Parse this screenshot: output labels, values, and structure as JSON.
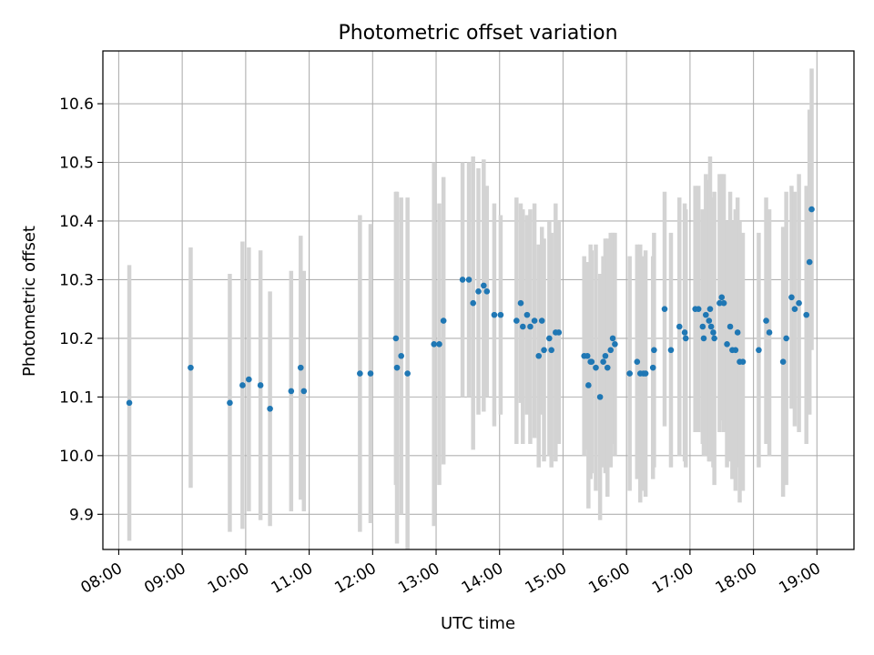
{
  "chart_data": {
    "type": "scatter",
    "title": "Photometric offset variation",
    "xlabel": "UTC time",
    "ylabel": "Photometric offset",
    "xlim": [
      "07:45",
      "19:35"
    ],
    "ylim": [
      9.84,
      10.69
    ],
    "grid": true,
    "x_ticks": [
      "08:00",
      "09:00",
      "10:00",
      "11:00",
      "12:00",
      "13:00",
      "14:00",
      "15:00",
      "16:00",
      "17:00",
      "18:00",
      "19:00"
    ],
    "y_ticks": [
      9.9,
      10.0,
      10.1,
      10.2,
      10.3,
      10.4,
      10.5,
      10.6
    ],
    "colors": {
      "points": "#1f77b4",
      "errorbars": "#d3d3d3",
      "grid": "#b0b0b0"
    },
    "series": [
      {
        "x": [
          "08:10",
          "09:08",
          "09:45",
          "09:57",
          "10:03",
          "10:14",
          "10:23",
          "10:43",
          "10:52",
          "10:55",
          "11:48",
          "11:58",
          "12:22",
          "12:23",
          "12:27",
          "12:33",
          "12:58",
          "13:03",
          "13:07",
          "13:25",
          "13:31",
          "13:35",
          "13:40",
          "13:45",
          "13:48",
          "13:55",
          "14:01",
          "14:16",
          "14:20",
          "14:22",
          "14:26",
          "14:29",
          "14:33",
          "14:37",
          "14:40",
          "14:42",
          "14:47",
          "14:49",
          "14:53",
          "14:56",
          "15:20",
          "15:23",
          "15:24",
          "15:26",
          "15:27",
          "15:31",
          "15:35",
          "15:38",
          "15:40",
          "15:42",
          "15:45",
          "15:47",
          "15:49",
          "16:03",
          "16:10",
          "16:13",
          "16:16",
          "16:18",
          "16:25",
          "16:26",
          "16:36",
          "16:42",
          "16:50",
          "16:55",
          "16:56",
          "17:05",
          "17:08",
          "17:12",
          "17:13",
          "17:15",
          "17:18",
          "17:19",
          "17:20",
          "17:22",
          "17:23",
          "17:28",
          "17:30",
          "17:32",
          "17:35",
          "17:38",
          "17:40",
          "17:43",
          "17:45",
          "17:47",
          "17:50",
          "18:05",
          "18:12",
          "18:15",
          "18:28",
          "18:31",
          "18:36",
          "18:39",
          "18:43",
          "18:50",
          "18:53",
          "18:55"
        ],
        "y": [
          10.09,
          10.15,
          10.09,
          10.12,
          10.13,
          10.12,
          10.08,
          10.11,
          10.15,
          10.11,
          10.14,
          10.14,
          10.2,
          10.15,
          10.17,
          10.14,
          10.19,
          10.19,
          10.23,
          10.3,
          10.3,
          10.26,
          10.28,
          10.29,
          10.28,
          10.24,
          10.24,
          10.23,
          10.26,
          10.22,
          10.24,
          10.22,
          10.23,
          10.17,
          10.23,
          10.18,
          10.2,
          10.18,
          10.21,
          10.21,
          10.17,
          10.17,
          10.12,
          10.16,
          10.16,
          10.15,
          10.1,
          10.16,
          10.17,
          10.15,
          10.18,
          10.2,
          10.19,
          10.14,
          10.16,
          10.14,
          10.14,
          10.14,
          10.15,
          10.18,
          10.25,
          10.18,
          10.22,
          10.21,
          10.2,
          10.25,
          10.25,
          10.22,
          10.2,
          10.24,
          10.23,
          10.25,
          10.22,
          10.21,
          10.2,
          10.26,
          10.27,
          10.26,
          10.19,
          10.22,
          10.18,
          10.18,
          10.21,
          10.16,
          10.16,
          10.18,
          10.23,
          10.21,
          10.16,
          10.2,
          10.27,
          10.25,
          10.26,
          10.24,
          10.33,
          10.42
        ],
        "yerr": [
          0.235,
          0.205,
          0.22,
          0.245,
          0.225,
          0.23,
          0.2,
          0.205,
          0.225,
          0.205,
          0.27,
          0.255,
          0.25,
          0.3,
          0.27,
          0.3,
          0.31,
          0.24,
          0.245,
          0.2,
          0.2,
          0.25,
          0.21,
          0.215,
          0.18,
          0.19,
          0.17,
          0.21,
          0.17,
          0.2,
          0.17,
          0.2,
          0.2,
          0.19,
          0.16,
          0.19,
          0.2,
          0.2,
          0.22,
          0.19,
          0.17,
          0.16,
          0.21,
          0.2,
          0.19,
          0.21,
          0.21,
          0.18,
          0.2,
          0.22,
          0.2,
          0.18,
          0.19,
          0.2,
          0.2,
          0.22,
          0.2,
          0.21,
          0.19,
          0.2,
          0.2,
          0.2,
          0.22,
          0.22,
          0.22,
          0.21,
          0.21,
          0.2,
          0.2,
          0.24,
          0.24,
          0.26,
          0.22,
          0.23,
          0.25,
          0.22,
          0.21,
          0.22,
          0.21,
          0.23,
          0.22,
          0.24,
          0.23,
          0.24,
          0.22,
          0.2,
          0.21,
          0.21,
          0.23,
          0.25,
          0.19,
          0.2,
          0.22,
          0.22,
          0.26,
          0.24
        ]
      }
    ]
  }
}
